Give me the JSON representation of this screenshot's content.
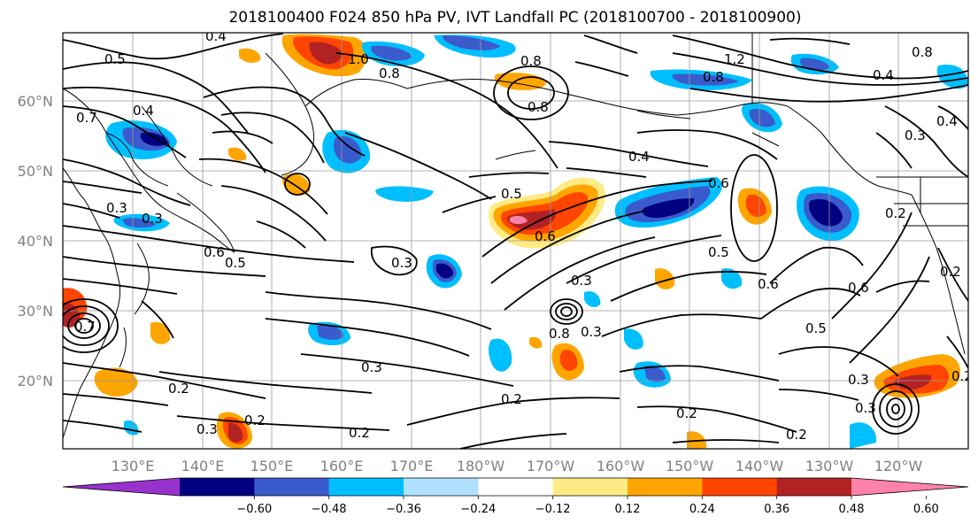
{
  "title": "2018100400 F024 850 hPa PV, IVT Landfall PC (2018100700 - 2018100900)",
  "lat_labels": [
    "60°N",
    "50°N",
    "40°N",
    "30°N",
    "20°N"
  ],
  "lon_labels": [
    "130°E",
    "140°E",
    "150°E",
    "160°E",
    "170°E",
    "180°W",
    "170°W",
    "160°W",
    "150°W",
    "140°W",
    "130°W",
    "120°W"
  ],
  "contour_labels": [
    "0.4",
    "0.5",
    "1.0",
    "0.8",
    "0.8",
    "1.2",
    "0.8",
    "0.4",
    "0.7",
    "0.4",
    "0.8",
    "0.8",
    "0.4",
    "0.3",
    "0.4",
    "0.6",
    "0.3",
    "0.3",
    "0.5",
    "0.6",
    "0.2",
    "0.5",
    "0.3",
    "0.3",
    "0.3",
    "0.6",
    "0.5",
    "0.7",
    "0.5",
    "0.3",
    "0.8",
    "0.6",
    "0.2",
    "0.2",
    "0.3",
    "0.2",
    "0.2",
    "0.2",
    "0.2",
    "0.2",
    "0.3",
    "0.6",
    "0.3",
    "0.2"
  ],
  "colorbar": {
    "ticks": [
      "−0.60",
      "−0.48",
      "−0.36",
      "−0.24",
      "−0.12",
      "0.12",
      "0.24",
      "0.36",
      "0.48",
      "0.60"
    ],
    "colors": [
      "#9932cc",
      "#000080",
      "#3a5bcc",
      "#00bfff",
      "#b0e2ff",
      "#ffffff",
      "#ffeb85",
      "#ffa500",
      "#ff4500",
      "#b22222",
      "#ff82ab"
    ]
  }
}
